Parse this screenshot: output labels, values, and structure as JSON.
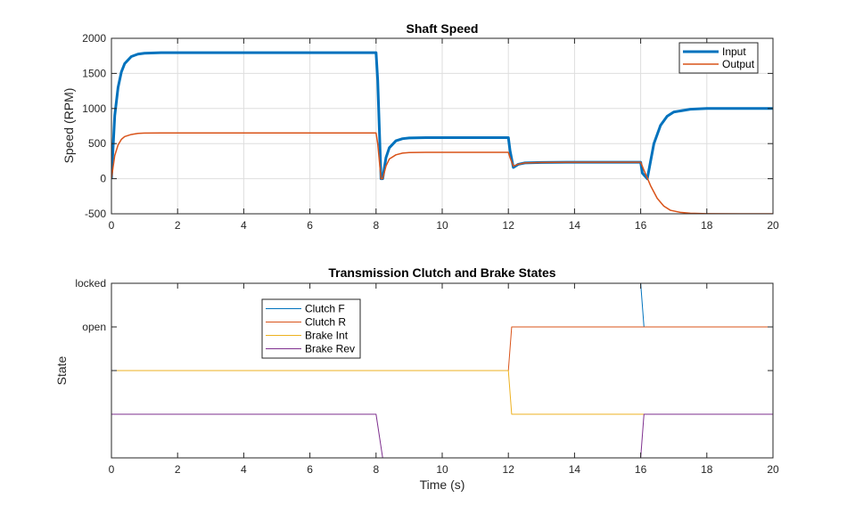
{
  "chart_data": [
    {
      "type": "line",
      "title": "Shaft Speed",
      "xlabel": "",
      "ylabel": "Speed (RPM)",
      "xlim": [
        0,
        20
      ],
      "ylim": [
        -500,
        2000
      ],
      "xticks": [
        0,
        2,
        4,
        6,
        8,
        10,
        12,
        14,
        16,
        18,
        20
      ],
      "yticks": [
        -500,
        0,
        500,
        1000,
        1500,
        2000
      ],
      "grid": true,
      "legend": "top-right",
      "series": [
        {
          "name": "Input",
          "color": "#0072bd",
          "width": 3,
          "x": [
            0,
            0.1,
            0.2,
            0.3,
            0.4,
            0.6,
            0.8,
            1.0,
            1.5,
            2,
            4,
            6,
            8.0,
            8.05,
            8.15,
            8.2,
            8.3,
            8.4,
            8.6,
            8.8,
            9.0,
            9.5,
            10,
            11,
            12.0,
            12.05,
            12.15,
            12.3,
            12.5,
            13,
            14,
            15,
            16.0,
            16.05,
            16.2,
            16.4,
            16.6,
            16.8,
            17.0,
            17.5,
            18,
            19,
            20
          ],
          "y": [
            0,
            900,
            1300,
            1520,
            1640,
            1740,
            1775,
            1788,
            1795,
            1795,
            1795,
            1795,
            1795,
            1400,
            0,
            0,
            300,
            440,
            540,
            570,
            580,
            585,
            585,
            585,
            585,
            400,
            160,
            205,
            225,
            232,
            235,
            235,
            235,
            80,
            0,
            500,
            760,
            890,
            950,
            990,
            1000,
            1000,
            1000
          ]
        },
        {
          "name": "Output",
          "color": "#d95319",
          "width": 1.5,
          "x": [
            0,
            0.1,
            0.2,
            0.3,
            0.4,
            0.6,
            0.8,
            1.0,
            1.5,
            2,
            4,
            6,
            8.0,
            8.05,
            8.15,
            8.2,
            8.3,
            8.4,
            8.6,
            8.8,
            9.0,
            9.5,
            10,
            11,
            12.0,
            12.05,
            12.15,
            12.3,
            12.5,
            13,
            14,
            15,
            16.0,
            16.1,
            16.3,
            16.5,
            16.7,
            16.9,
            17.2,
            17.5,
            18,
            19,
            20
          ],
          "y": [
            0,
            330,
            480,
            560,
            600,
            630,
            645,
            650,
            652,
            652,
            652,
            652,
            652,
            500,
            0,
            0,
            180,
            280,
            340,
            365,
            372,
            375,
            375,
            375,
            375,
            300,
            180,
            205,
            225,
            232,
            235,
            235,
            235,
            120,
            -100,
            -280,
            -390,
            -450,
            -480,
            -492,
            -498,
            -500,
            -500
          ]
        }
      ]
    },
    {
      "type": "line",
      "title": "Transmission Clutch and Brake States",
      "xlabel": "Time (s)",
      "ylabel": "State",
      "xlim": [
        0,
        20
      ],
      "ylim": [
        0,
        4
      ],
      "xticks": [
        0,
        2,
        4,
        6,
        8,
        10,
        12,
        14,
        16,
        18,
        20
      ],
      "yticks": [
        4,
        3,
        2
      ],
      "yticklabels": [
        "locked",
        "open",
        ""
      ],
      "grid": false,
      "legend": "top-left",
      "series": [
        {
          "name": "Clutch F",
          "color": "#0072bd",
          "width": 1,
          "x": [
            0,
            16.0,
            16.1,
            20
          ],
          "y": [
            4,
            4,
            3,
            3
          ]
        },
        {
          "name": "Clutch R",
          "color": "#d95319",
          "width": 1,
          "x": [
            0,
            12.0,
            12.1,
            20
          ],
          "y": [
            2,
            2,
            3,
            3
          ]
        },
        {
          "name": "Brake Int",
          "color": "#edb120",
          "width": 1,
          "x": [
            0,
            8.0,
            8.2,
            12.0,
            12.1,
            20
          ],
          "y": [
            2,
            2,
            2,
            2,
            1,
            1
          ]
        },
        {
          "name": "Brake Rev",
          "color": "#7e2f8e",
          "width": 1,
          "x": [
            0,
            8.0,
            8.2,
            16.0,
            16.1,
            20
          ],
          "y": [
            1,
            1,
            0,
            0,
            1,
            1
          ]
        }
      ]
    }
  ]
}
